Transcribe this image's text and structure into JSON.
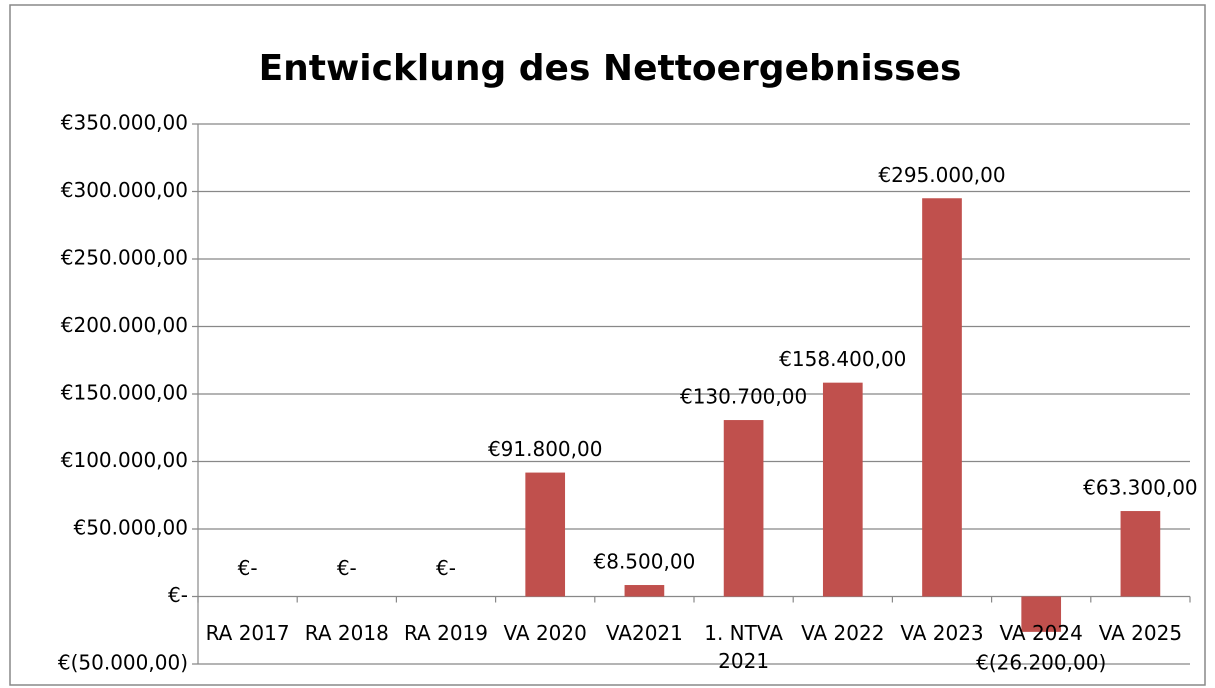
{
  "chart_data": {
    "type": "bar",
    "title": "Entwicklung des Nettoergebnisses",
    "categories": [
      "RA 2017",
      "RA 2018",
      "RA 2019",
      "VA 2020",
      "VA2021",
      "1. NTVA 2021",
      "VA 2022",
      "VA 2023",
      "VA 2024",
      "VA 2025"
    ],
    "values": [
      0,
      0,
      0,
      91800,
      8500,
      130700,
      158400,
      295000,
      -26200,
      63300
    ],
    "value_labels": [
      "€-",
      "€-",
      "€-",
      "€91.800,00",
      "€8.500,00",
      "€130.700,00",
      "€158.400,00",
      "€295.000,00",
      "€(26.200,00)",
      "€63.300,00"
    ],
    "color": "#c0504d",
    "ylim": [
      -50000,
      350000
    ],
    "yticks": [
      {
        "value": -50000,
        "label": "€(50.000,00)"
      },
      {
        "value": 0,
        "label": "€-"
      },
      {
        "value": 50000,
        "label": "€50.000,00"
      },
      {
        "value": 100000,
        "label": "€100.000,00"
      },
      {
        "value": 150000,
        "label": "€150.000,00"
      },
      {
        "value": 200000,
        "label": "€200.000,00"
      },
      {
        "value": 250000,
        "label": "€250.000,00"
      },
      {
        "value": 300000,
        "label": "€300.000,00"
      },
      {
        "value": 350000,
        "label": "€350.000,00"
      }
    ],
    "grid": true
  }
}
